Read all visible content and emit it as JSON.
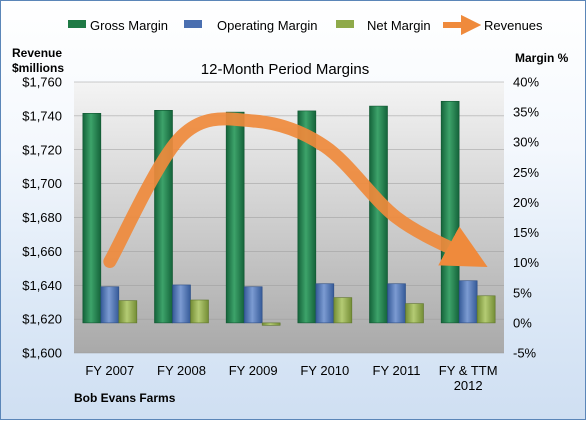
{
  "chart_data": {
    "type": "bar",
    "title": "12-Month Period Margins",
    "company": "Bob Evans Farms",
    "categories": [
      "FY 2007",
      "FY 2008",
      "FY 2009",
      "FY 2010",
      "FY 2011",
      "FY & TTM 2012"
    ],
    "ylabel_left": [
      "Revenue",
      "$millions"
    ],
    "ylabel_right": "Margin %",
    "ylim_left": [
      1600,
      1760
    ],
    "ylim_right": [
      -5,
      40
    ],
    "yticks_left": [
      "$1,600",
      "$1,620",
      "$1,640",
      "$1,660",
      "$1,680",
      "$1,700",
      "$1,720",
      "$1,740",
      "$1,760"
    ],
    "yticks_right": [
      "-5%",
      "0%",
      "5%",
      "10%",
      "15%",
      "20%",
      "25%",
      "30%",
      "35%",
      "40%"
    ],
    "series": [
      {
        "name": "Gross Margin",
        "axis": "right",
        "values": [
          34.8,
          35.3,
          35.0,
          35.2,
          36.0,
          36.8
        ]
      },
      {
        "name": "Operating Margin",
        "axis": "right",
        "values": [
          6.0,
          6.3,
          6.0,
          6.5,
          6.5,
          7.0
        ]
      },
      {
        "name": "Net Margin",
        "axis": "right",
        "values": [
          3.7,
          3.8,
          -0.4,
          4.2,
          3.2,
          4.5
        ]
      },
      {
        "name": "Revenues",
        "axis": "left",
        "type": "line",
        "values": [
          1654,
          1728,
          1737,
          1722,
          1680,
          1657
        ]
      }
    ],
    "colors": {
      "gross": "#1f7a45",
      "operating": "#4a6fb0",
      "net": "#8faa4a",
      "revenue": "#ef8a3c",
      "plot_bg": "#bfbfbf"
    },
    "legend_position": "top"
  }
}
